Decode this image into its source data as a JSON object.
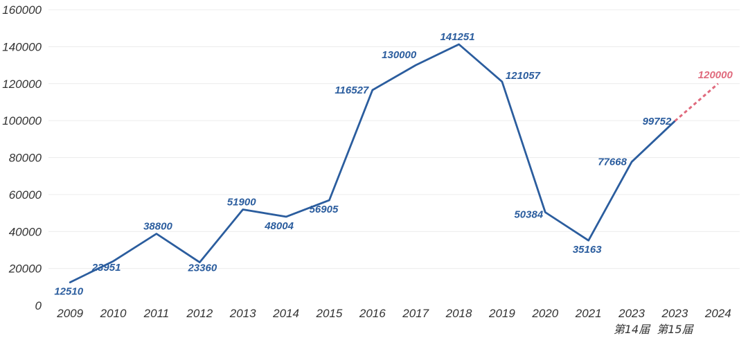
{
  "chart_data": {
    "type": "line",
    "title": "",
    "xlabel": "",
    "ylabel": "",
    "ylim": [
      0,
      160000
    ],
    "yticks": [
      0,
      20000,
      40000,
      60000,
      80000,
      100000,
      120000,
      140000,
      160000
    ],
    "grid": true,
    "categories": [
      "2009",
      "2010",
      "2011",
      "2012",
      "2013",
      "2014",
      "2015",
      "2016",
      "2017",
      "2018",
      "2019",
      "2020",
      "2021",
      "2023",
      "2023",
      "2024"
    ],
    "category_sublabels": [
      "",
      "",
      "",
      "",
      "",
      "",
      "",
      "",
      "",
      "",
      "",
      "",
      "",
      "第14届",
      "第15届",
      ""
    ],
    "series": [
      {
        "values": [
          12510,
          23951,
          38800,
          23360,
          51900,
          48004,
          56905,
          116527,
          130000,
          141251,
          121057,
          50384,
          35163,
          77668,
          99752,
          null
        ],
        "color": "#2b5d9e",
        "style": "solid"
      },
      {
        "values": [
          null,
          null,
          null,
          null,
          null,
          null,
          null,
          null,
          null,
          null,
          null,
          null,
          null,
          null,
          99752,
          120000
        ],
        "color": "#e06a7d",
        "style": "dashed",
        "labeled_points": [
          15
        ]
      }
    ]
  }
}
